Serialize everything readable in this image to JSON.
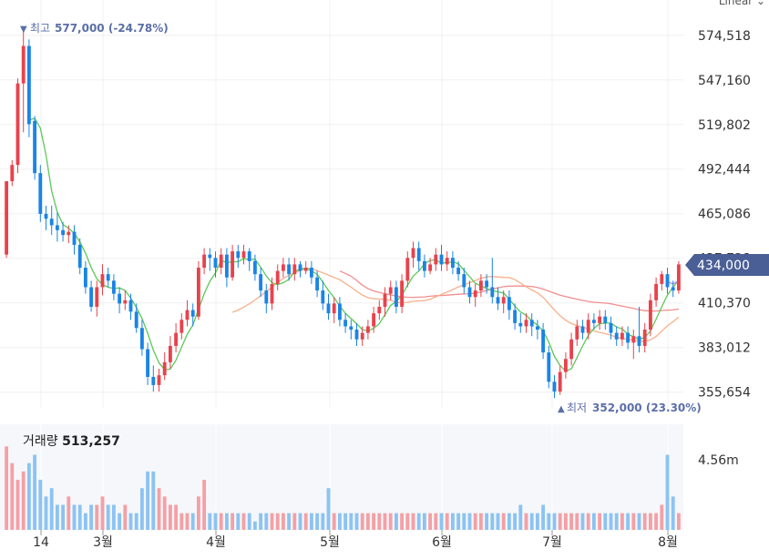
{
  "scale_mode": "Linear",
  "colors": {
    "up": "#e8424c",
    "down": "#1a84e6",
    "ma5": "#5cc85a",
    "ma20": "#f7b08a",
    "ma60": "#f28e8e",
    "ma_short2": "#b48ce6",
    "price_tag": "#4a5f95",
    "grid": "#f0f0f0",
    "volume_bg": "#f5f7fb",
    "annotation": "#5b6fa8"
  },
  "volume": {
    "label": "거래량",
    "value": "513,257",
    "axis_tick": "4.56m"
  },
  "annotations": {
    "high": {
      "marker": "▼",
      "label": "최고",
      "value": "577,000 (-24.78%)"
    },
    "low": {
      "marker": "▲",
      "label": "최저",
      "value": "352,000 (23.30%)"
    }
  },
  "chart_data": {
    "type": "candlestick",
    "y_axis_ticks": [
      "574,518",
      "547,160",
      "519,802",
      "492,444",
      "465,086",
      "437,728",
      "410,370",
      "383,012",
      "355,654"
    ],
    "ylim": [
      346000,
      585000
    ],
    "x_axis_ticks": [
      "14",
      "3월",
      "4월",
      "5월",
      "6월",
      "7월",
      "8월"
    ],
    "current_price": "434,000",
    "series": [
      {
        "name": "ma5"
      },
      {
        "name": "ma20"
      },
      {
        "name": "ma60"
      }
    ],
    "candles": [
      [
        440,
        485,
        485,
        438
      ],
      [
        485,
        495,
        498,
        482
      ],
      [
        495,
        545,
        548,
        490
      ],
      [
        545,
        568,
        577,
        515
      ],
      [
        568,
        520,
        572,
        512
      ],
      [
        522,
        490,
        525,
        486
      ],
      [
        490,
        465,
        495,
        460
      ],
      [
        465,
        462,
        470,
        455
      ],
      [
        462,
        458,
        470,
        452
      ],
      [
        458,
        455,
        466,
        448
      ],
      [
        455,
        452,
        460,
        448
      ],
      [
        452,
        454,
        458,
        447
      ],
      [
        454,
        446,
        458,
        440
      ],
      [
        446,
        432,
        450,
        428
      ],
      [
        432,
        420,
        436,
        416
      ],
      [
        420,
        408,
        424,
        405
      ],
      [
        408,
        420,
        424,
        402
      ],
      [
        420,
        428,
        434,
        415
      ],
      [
        428,
        424,
        432,
        420
      ],
      [
        424,
        416,
        428,
        412
      ],
      [
        416,
        410,
        420,
        404
      ],
      [
        410,
        412,
        418,
        406
      ],
      [
        412,
        405,
        416,
        400
      ],
      [
        405,
        395,
        410,
        392
      ],
      [
        395,
        382,
        400,
        378
      ],
      [
        382,
        365,
        386,
        360
      ],
      [
        365,
        360,
        372,
        356
      ],
      [
        360,
        366,
        370,
        356
      ],
      [
        366,
        374,
        380,
        363
      ],
      [
        374,
        384,
        390,
        370
      ],
      [
        384,
        392,
        398,
        380
      ],
      [
        392,
        400,
        404,
        388
      ],
      [
        400,
        406,
        412,
        396
      ],
      [
        406,
        402,
        410,
        396
      ],
      [
        402,
        432,
        436,
        400
      ],
      [
        432,
        440,
        444,
        428
      ],
      [
        440,
        438,
        444,
        430
      ],
      [
        438,
        432,
        442,
        426
      ],
      [
        432,
        440,
        444,
        428
      ],
      [
        440,
        426,
        444,
        420
      ],
      [
        426,
        442,
        446,
        424
      ],
      [
        442,
        438,
        446,
        432
      ],
      [
        438,
        442,
        446,
        434
      ],
      [
        442,
        436,
        444,
        430
      ],
      [
        436,
        428,
        440,
        424
      ],
      [
        428,
        418,
        432,
        414
      ],
      [
        418,
        410,
        422,
        404
      ],
      [
        410,
        422,
        426,
        406
      ],
      [
        422,
        430,
        434,
        418
      ],
      [
        430,
        434,
        438,
        426
      ],
      [
        434,
        428,
        438,
        424
      ],
      [
        428,
        434,
        438,
        424
      ],
      [
        434,
        430,
        436,
        426
      ],
      [
        430,
        432,
        436,
        428
      ],
      [
        432,
        426,
        436,
        422
      ],
      [
        426,
        418,
        430,
        414
      ],
      [
        418,
        410,
        424,
        406
      ],
      [
        410,
        404,
        416,
        400
      ],
      [
        404,
        410,
        414,
        398
      ],
      [
        410,
        400,
        414,
        396
      ],
      [
        400,
        396,
        404,
        392
      ],
      [
        396,
        394,
        400,
        388
      ],
      [
        394,
        388,
        398,
        384
      ],
      [
        388,
        392,
        396,
        384
      ],
      [
        392,
        396,
        400,
        388
      ],
      [
        396,
        404,
        408,
        392
      ],
      [
        404,
        408,
        412,
        400
      ],
      [
        408,
        416,
        420,
        402
      ],
      [
        416,
        420,
        424,
        412
      ],
      [
        420,
        408,
        424,
        404
      ],
      [
        408,
        424,
        428,
        404
      ],
      [
        424,
        438,
        442,
        420
      ],
      [
        438,
        444,
        448,
        432
      ],
      [
        444,
        436,
        448,
        430
      ],
      [
        436,
        430,
        440,
        426
      ],
      [
        430,
        434,
        438,
        428
      ],
      [
        434,
        440,
        444,
        430
      ],
      [
        440,
        434,
        446,
        430
      ],
      [
        434,
        438,
        442,
        430
      ],
      [
        438,
        432,
        442,
        428
      ],
      [
        432,
        428,
        436,
        424
      ],
      [
        428,
        420,
        432,
        416
      ],
      [
        420,
        414,
        424,
        410
      ],
      [
        414,
        418,
        422,
        408
      ],
      [
        418,
        424,
        428,
        414
      ],
      [
        424,
        420,
        428,
        416
      ],
      [
        420,
        414,
        438,
        410
      ],
      [
        414,
        410,
        420,
        406
      ],
      [
        410,
        414,
        418,
        404
      ],
      [
        414,
        406,
        418,
        400
      ],
      [
        406,
        398,
        410,
        394
      ],
      [
        398,
        396,
        404,
        392
      ],
      [
        396,
        400,
        404,
        392
      ],
      [
        400,
        396,
        404,
        390
      ],
      [
        396,
        394,
        400,
        388
      ],
      [
        394,
        380,
        398,
        376
      ],
      [
        380,
        362,
        384,
        358
      ],
      [
        362,
        356,
        366,
        352
      ],
      [
        356,
        368,
        372,
        354
      ],
      [
        368,
        376,
        380,
        364
      ],
      [
        376,
        388,
        392,
        372
      ],
      [
        388,
        396,
        400,
        384
      ],
      [
        396,
        392,
        400,
        388
      ],
      [
        392,
        400,
        404,
        388
      ],
      [
        400,
        398,
        404,
        394
      ],
      [
        398,
        402,
        406,
        394
      ],
      [
        402,
        398,
        406,
        394
      ],
      [
        398,
        392,
        402,
        388
      ],
      [
        392,
        388,
        396,
        384
      ],
      [
        388,
        392,
        396,
        384
      ],
      [
        392,
        386,
        396,
        382
      ],
      [
        386,
        390,
        394,
        376
      ],
      [
        390,
        384,
        408,
        380
      ],
      [
        384,
        394,
        398,
        380
      ],
      [
        394,
        412,
        416,
        390
      ],
      [
        412,
        422,
        426,
        408
      ],
      [
        422,
        428,
        430,
        418
      ],
      [
        428,
        420,
        432,
        416
      ],
      [
        420,
        418,
        424,
        414
      ],
      [
        418,
        434,
        436,
        416
      ]
    ],
    "volumes": [
      0.1,
      0.08,
      0.06,
      0.07,
      0.08,
      0.09,
      0.06,
      0.04,
      0.05,
      0.03,
      0.03,
      0.04,
      0.03,
      0.03,
      0.02,
      0.03,
      0.03,
      0.04,
      0.03,
      0.03,
      0.02,
      0.03,
      0.02,
      0.02,
      0.05,
      0.07,
      0.07,
      0.05,
      0.04,
      0.03,
      0.03,
      0.02,
      0.02,
      0.02,
      0.04,
      0.06,
      0.02,
      0.02,
      0.02,
      0.02,
      0.02,
      0.02,
      0.02,
      0.02,
      0.01,
      0.02,
      0.02,
      0.02,
      0.02,
      0.02,
      0.02,
      0.02,
      0.02,
      0.02,
      0.02,
      0.02,
      0.02,
      0.05,
      0.02,
      0.02,
      0.02,
      0.02,
      0.02,
      0.02,
      0.02,
      0.02,
      0.02,
      0.02,
      0.02,
      0.02,
      0.02,
      0.02,
      0.02,
      0.02,
      0.02,
      0.02,
      0.02,
      0.02,
      0.02,
      0.02,
      0.02,
      0.02,
      0.02,
      0.02,
      0.02,
      0.02,
      0.02,
      0.02,
      0.02,
      0.02,
      0.02,
      0.03,
      0.02,
      0.02,
      0.02,
      0.03,
      0.02,
      0.02,
      0.02,
      0.02,
      0.02,
      0.02,
      0.02,
      0.02,
      0.02,
      0.02,
      0.02,
      0.02,
      0.02,
      0.02,
      0.02,
      0.02,
      0.02,
      0.02,
      0.02,
      0.02,
      0.03,
      0.09,
      0.04,
      0.02,
      0.02,
      0.02,
      0.02,
      0.02,
      0.02
    ]
  }
}
